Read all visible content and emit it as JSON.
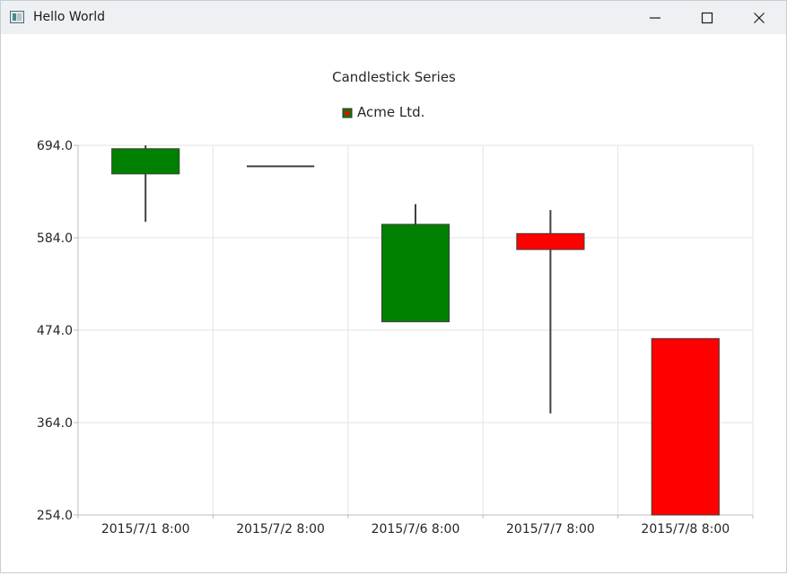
{
  "window": {
    "title": "Hello World"
  },
  "chart_data": {
    "type": "candlestick",
    "title": "Candlestick Series",
    "legend": {
      "position": "top-center",
      "entries": [
        "Acme Ltd."
      ]
    },
    "series": [
      {
        "name": "Acme Ltd.",
        "increasing_color": "#008000",
        "decreasing_color": "#ff0000",
        "candles": [
          {
            "x": "2015/7/1 8:00",
            "open": 660,
            "high": 694,
            "low": 603,
            "close": 690
          },
          {
            "x": "2015/7/2 8:00",
            "open": 669,
            "high": 669,
            "low": 669,
            "close": 669
          },
          {
            "x": "2015/7/6 8:00",
            "open": 484,
            "high": 624,
            "low": 484,
            "close": 600
          },
          {
            "x": "2015/7/7 8:00",
            "open": 589,
            "high": 617,
            "low": 375,
            "close": 570
          },
          {
            "x": "2015/7/8 8:00",
            "open": 464,
            "high": 464,
            "low": 254,
            "close": 254
          }
        ]
      }
    ],
    "categories": [
      "2015/7/1 8:00",
      "2015/7/2 8:00",
      "2015/7/6 8:00",
      "2015/7/7 8:00",
      "2015/7/8 8:00"
    ],
    "y_ticks": [
      "694.0",
      "584.0",
      "474.0",
      "364.0",
      "254.0"
    ],
    "ylim": [
      254,
      694
    ],
    "grid": true
  }
}
